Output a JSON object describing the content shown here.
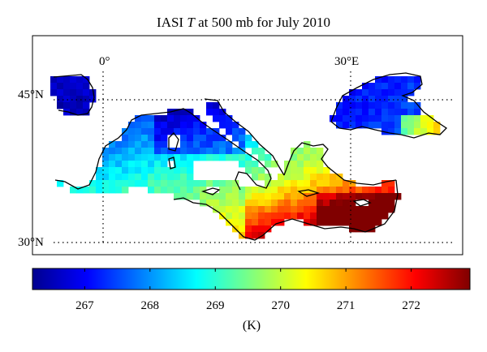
{
  "title_prefix": "IASI ",
  "title_italic": "T",
  "title_suffix": " at 500 mb for July 2010",
  "grid_labels": {
    "lon_0": "0°",
    "lon_30": "30°E",
    "lat_45": "45°N",
    "lat_30": "30°N"
  },
  "colorbar": {
    "min": 266.2,
    "max": 272.9,
    "ticks": [
      267,
      268,
      269,
      270,
      271,
      272
    ],
    "unit": "(K)",
    "colormap": "jet"
  },
  "colors": {
    "land_outline": "#000000",
    "frame": "#000000",
    "background": "#ffffff"
  }
}
